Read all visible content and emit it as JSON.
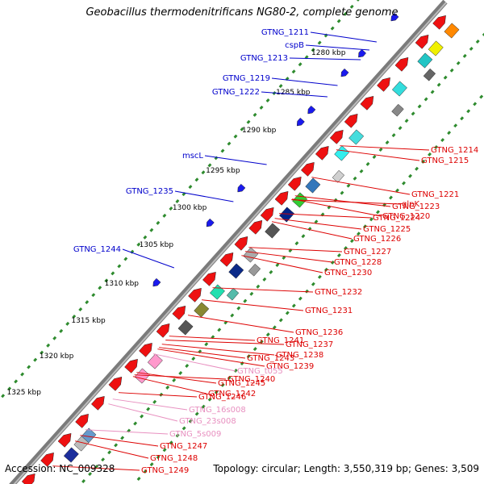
{
  "title": "Geobacillus thermodenitrificans NG80-2, complete genome",
  "footer": {
    "accession": "Accession: NC_009328",
    "stats": "Topology: circular; Length: 3,550,319 bp; Genes: 3,509"
  },
  "colors": {
    "backbone": "#7b7b7b",
    "tick": "#2e8b2e",
    "outer_label": "#0000cc",
    "inner_label": "#dd0000",
    "rna_label": "#e890c0"
  },
  "scale_labels": [
    "1280 kbp",
    "1285 kbp",
    "1290 kbp",
    "1295 kbp",
    "1300 kbp",
    "1305 kbp",
    "1310 kbp",
    "1315 kbp",
    "1320 kbp",
    "1325 kbp"
  ],
  "outer_genes": [
    "GTNG_1211",
    "cspB",
    "GTNG_1213",
    "GTNG_1219",
    "GTNG_1222",
    "mscL",
    "GTNG_1235",
    "GTNG_1244"
  ],
  "inner_genes": [
    "GTNG_1214",
    "GTNG_1215",
    "GTNG_1221",
    "glpK",
    "GTNG_1223",
    "GTNG_1220",
    "GTNG_1224",
    "GTNG_1225",
    "GTNG_1226",
    "GTNG_1227",
    "GTNG_1228",
    "GTNG_1230",
    "GTNG_1232",
    "GTNG_1231",
    "GTNG_1236",
    "GTNG_1237",
    "GTNG_1238",
    "GTNG_1239",
    "GTNG_1241",
    "GTNG_1243",
    "GTNG_t055",
    "GTNG_1240",
    "GTNG_1245",
    "GTNG_1242",
    "GTNG_1246",
    "GTNG_16s008",
    "GTNG_23s008",
    "GTNG_5s009",
    "GTNG_1247",
    "GTNG_1248",
    "GTNG_1249"
  ]
}
